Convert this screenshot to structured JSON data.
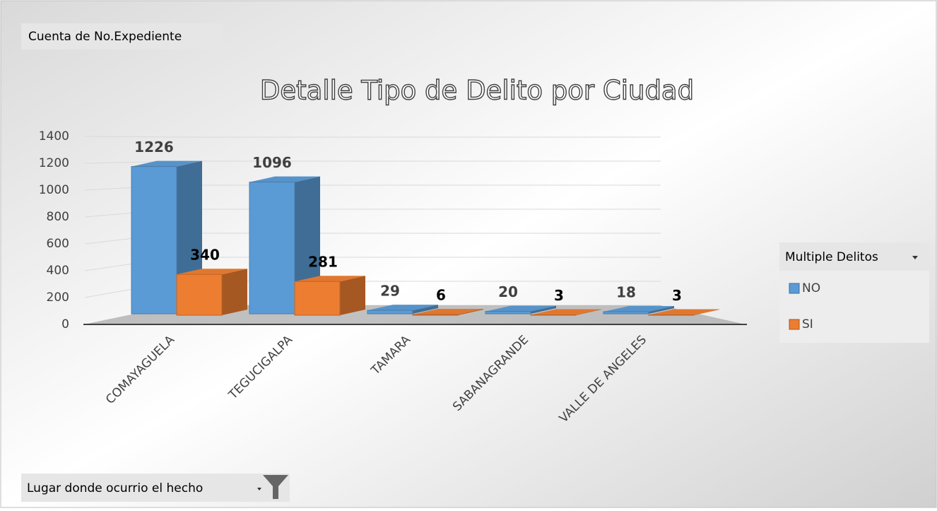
{
  "field_buttons": {
    "value_field": "Cuenta de No.Expediente",
    "axis_field": "Lugar donde ocurrio el hecho"
  },
  "chart_data": {
    "type": "bar3d",
    "title": "Detalle Tipo de Delito por Ciudad",
    "categories": [
      "COMAYAGUELA",
      "TEGUCIGALPA",
      "TAMARA",
      "SABANAGRANDE",
      "VALLE DE ANGELES"
    ],
    "legend_title": "Multiple Delitos",
    "series": [
      {
        "name": "NO",
        "color": "#5b9bd5",
        "values": [
          1226,
          1096,
          29,
          20,
          18
        ]
      },
      {
        "name": "SI",
        "color": "#ed7d31",
        "values": [
          340,
          281,
          6,
          3,
          3
        ]
      }
    ],
    "ylim": [
      0,
      1400
    ],
    "yticks": [
      0,
      200,
      400,
      600,
      800,
      1000,
      1200,
      1400
    ],
    "grid": true,
    "legend": "right"
  }
}
